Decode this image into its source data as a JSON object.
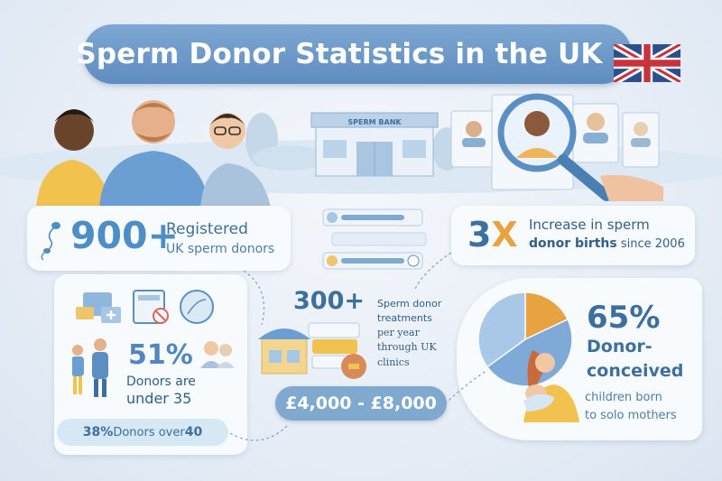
{
  "title": "Sperm Donor Statistics in the UK",
  "scene": {
    "sperm_bank_sign": "SPERM BANK"
  },
  "stats": {
    "registered": {
      "value": "900+",
      "line1": "Registered",
      "line2": "UK sperm donors"
    },
    "births": {
      "value_num": "3",
      "value_x": "X",
      "line1": "Increase in sperm",
      "line2_bold": "donor births",
      "line2_rest": " since 2006"
    },
    "age": {
      "value": "51%",
      "line1": "Donors are",
      "line2": "under 35",
      "over40_value": "38%",
      "over40_label": " Donors over ",
      "over40_age": "40"
    },
    "treatments": {
      "value": "300+",
      "line1": "Sperm donor",
      "line2": "treatments",
      "line3": "per year",
      "line4": "through UK",
      "line5": "clinics",
      "cost": "£4,000 - £8,000"
    },
    "solo": {
      "value": "65%",
      "line1": "Donor-",
      "line2": "conceived",
      "line3": "children born",
      "line4": "to solo mothers"
    }
  },
  "colors": {
    "title_pill": "#6a97c8",
    "accent_blue": "#4e8ec6",
    "accent_orange": "#e6a340",
    "text_dark": "#2f5f86",
    "card_bg": "#f8fbfe"
  },
  "pie_data": {
    "type": "pie",
    "slices": [
      {
        "color": "#e6a340",
        "fraction": 0.18
      },
      {
        "color": "#7fa9d6",
        "fraction": 0.47
      },
      {
        "color": "#a9c7e6",
        "fraction": 0.35
      }
    ]
  },
  "icons": [
    "uk-flag-icon",
    "sperm-icon",
    "magnifier-icon",
    "calculator-icon",
    "no-sign-icon",
    "dna-icon",
    "clinic-icon",
    "coin-icon"
  ]
}
